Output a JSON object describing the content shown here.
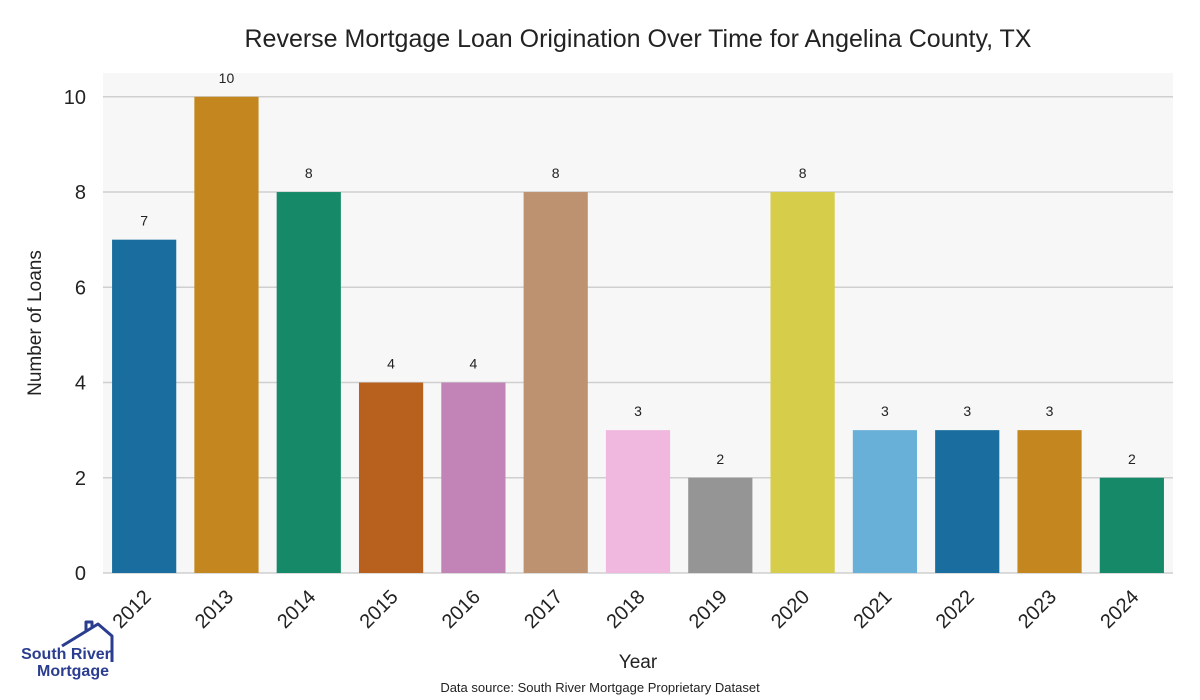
{
  "chart_data": {
    "type": "bar",
    "title": "Reverse Mortgage Loan Origination Over Time for Angelina County, TX",
    "xlabel": "Year",
    "ylabel": "Number of Loans",
    "categories": [
      "2012",
      "2013",
      "2014",
      "2015",
      "2016",
      "2017",
      "2018",
      "2019",
      "2020",
      "2021",
      "2022",
      "2023",
      "2024"
    ],
    "values": [
      7,
      10,
      8,
      4,
      4,
      8,
      3,
      2,
      8,
      3,
      3,
      3,
      2
    ],
    "colors": [
      "#1a6e9f",
      "#c4871f",
      "#168a68",
      "#b8611e",
      "#c283b6",
      "#bd9270",
      "#f1b8df",
      "#959595",
      "#d6cd4b",
      "#69b0d9",
      "#1a6e9f",
      "#c4871f",
      "#168a68"
    ],
    "ylim": [
      0,
      10.5
    ],
    "yticks": [
      0,
      2,
      4,
      6,
      8,
      10
    ],
    "grid": true,
    "legend": "none",
    "background": "#f7f7f7",
    "source_note": "Data source: South River Mortgage Proprietary Dataset"
  },
  "logo": {
    "line1": "South River",
    "line2": "Mortgage",
    "color": "#2b3d8f"
  }
}
